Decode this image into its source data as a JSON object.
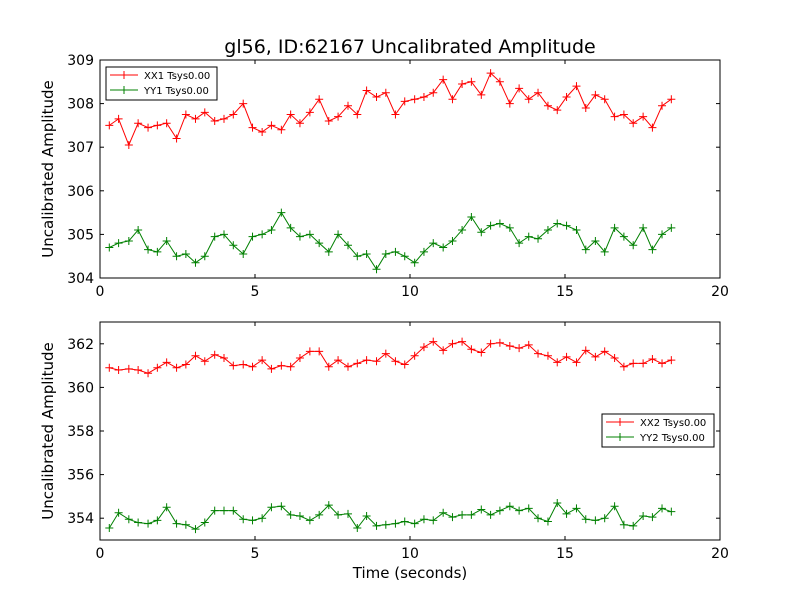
{
  "title": "gl56, ID:62167 Uncalibrated Amplitude",
  "xlabel": "Time (seconds)",
  "chart_data": [
    {
      "type": "line",
      "title": "gl56, ID:62167 Uncalibrated Amplitude",
      "xlabel": "",
      "ylabel": "Uncalibrated Amplitude",
      "xlim": [
        0,
        20
      ],
      "ylim": [
        304,
        309
      ],
      "xticks": [
        "0",
        "5",
        "10",
        "15",
        "20"
      ],
      "yticks": [
        "304",
        "305",
        "306",
        "307",
        "308",
        "309"
      ],
      "legend_position": "top-left",
      "x": [
        0.3,
        0.6,
        0.93,
        1.23,
        1.55,
        1.85,
        2.15,
        2.47,
        2.77,
        3.08,
        3.38,
        3.7,
        4.0,
        4.3,
        4.62,
        4.92,
        5.23,
        5.53,
        5.85,
        6.15,
        6.45,
        6.77,
        7.07,
        7.38,
        7.68,
        8.0,
        8.3,
        8.6,
        8.92,
        9.22,
        9.53,
        9.83,
        10.15,
        10.45,
        10.75,
        11.07,
        11.37,
        11.68,
        11.98,
        12.3,
        12.6,
        12.9,
        13.22,
        13.52,
        13.83,
        14.13,
        14.45,
        14.75,
        15.05,
        15.37,
        15.67,
        15.98,
        16.28,
        16.6,
        16.9,
        17.2,
        17.52,
        17.82,
        18.13,
        18.43
      ],
      "series": [
        {
          "name": "XX1 Tsys0.00",
          "color": "#ff0000",
          "values": [
            307.5,
            307.65,
            307.05,
            307.55,
            307.45,
            307.5,
            307.55,
            307.2,
            307.75,
            307.65,
            307.8,
            307.6,
            307.65,
            307.75,
            308.0,
            307.45,
            307.35,
            307.5,
            307.4,
            307.75,
            307.55,
            307.8,
            308.1,
            307.6,
            307.7,
            307.95,
            307.75,
            308.3,
            308.15,
            308.25,
            307.75,
            308.05,
            308.1,
            308.15,
            308.25,
            308.55,
            308.1,
            308.45,
            308.5,
            308.2,
            308.7,
            308.5,
            308.0,
            308.35,
            308.1,
            308.25,
            307.95,
            307.85,
            308.15,
            308.4,
            307.9,
            308.2,
            308.1,
            307.7,
            307.75,
            307.55,
            307.7,
            307.45,
            307.95,
            308.1
          ]
        },
        {
          "name": "YY1 Tsys0.00",
          "color": "#008000",
          "values": [
            304.7,
            304.8,
            304.85,
            305.1,
            304.65,
            304.6,
            304.85,
            304.5,
            304.55,
            304.35,
            304.5,
            304.95,
            305.0,
            304.75,
            304.55,
            304.95,
            305.0,
            305.1,
            305.5,
            305.15,
            304.95,
            305.0,
            304.8,
            304.6,
            305.0,
            304.75,
            304.5,
            304.55,
            304.2,
            304.55,
            304.6,
            304.5,
            304.35,
            304.6,
            304.8,
            304.7,
            304.85,
            305.1,
            305.4,
            305.05,
            305.2,
            305.25,
            305.15,
            304.8,
            304.95,
            304.9,
            305.1,
            305.25,
            305.2,
            305.1,
            304.65,
            304.85,
            304.6,
            305.15,
            304.95,
            304.75,
            305.15,
            304.65,
            305.0,
            305.15
          ]
        }
      ]
    },
    {
      "type": "line",
      "title": "",
      "xlabel": "Time (seconds)",
      "ylabel": "Uncalibrated Amplitude",
      "xlim": [
        0,
        20
      ],
      "ylim": [
        353,
        363
      ],
      "xticks": [
        "0",
        "5",
        "10",
        "15",
        "20"
      ],
      "yticks": [
        "354",
        "356",
        "358",
        "360",
        "362"
      ],
      "legend_position": "center-right",
      "x": [
        0.3,
        0.6,
        0.93,
        1.23,
        1.55,
        1.85,
        2.15,
        2.47,
        2.77,
        3.08,
        3.38,
        3.7,
        4.0,
        4.3,
        4.62,
        4.92,
        5.23,
        5.53,
        5.85,
        6.15,
        6.45,
        6.77,
        7.07,
        7.38,
        7.68,
        8.0,
        8.3,
        8.6,
        8.92,
        9.22,
        9.53,
        9.83,
        10.15,
        10.45,
        10.75,
        11.07,
        11.37,
        11.68,
        11.98,
        12.3,
        12.6,
        12.9,
        13.22,
        13.52,
        13.83,
        14.13,
        14.45,
        14.75,
        15.05,
        15.37,
        15.67,
        15.98,
        16.28,
        16.6,
        16.9,
        17.2,
        17.52,
        17.82,
        18.13,
        18.43
      ],
      "series": [
        {
          "name": "XX2 Tsys0.00",
          "color": "#ff0000",
          "values": [
            360.9,
            360.8,
            360.85,
            360.8,
            360.65,
            360.9,
            361.15,
            360.9,
            361.05,
            361.45,
            361.2,
            361.5,
            361.35,
            361.0,
            361.05,
            360.95,
            361.25,
            360.85,
            361.0,
            360.95,
            361.35,
            361.65,
            361.65,
            360.95,
            361.25,
            360.95,
            361.1,
            361.25,
            361.2,
            361.55,
            361.2,
            361.05,
            361.45,
            361.85,
            362.1,
            361.7,
            362.0,
            362.1,
            361.75,
            361.6,
            362.0,
            362.05,
            361.9,
            361.8,
            361.95,
            361.55,
            361.45,
            361.15,
            361.4,
            361.15,
            361.7,
            361.4,
            361.65,
            361.35,
            360.95,
            361.1,
            361.1,
            361.3,
            361.1,
            361.25
          ]
        },
        {
          "name": "YY2 Tsys0.00",
          "color": "#008000",
          "values": [
            353.55,
            354.25,
            353.95,
            353.8,
            353.75,
            353.9,
            354.5,
            353.75,
            353.7,
            353.5,
            353.8,
            354.35,
            354.35,
            354.35,
            353.95,
            353.9,
            354.0,
            354.5,
            354.55,
            354.15,
            354.1,
            353.9,
            354.15,
            354.6,
            354.15,
            354.2,
            353.55,
            354.1,
            353.65,
            353.7,
            353.75,
            353.85,
            353.75,
            353.95,
            353.9,
            354.25,
            354.05,
            354.15,
            354.15,
            354.4,
            354.15,
            354.35,
            354.55,
            354.35,
            354.45,
            354.0,
            353.85,
            354.7,
            354.2,
            354.45,
            353.95,
            353.9,
            354.0,
            354.55,
            353.7,
            353.65,
            354.1,
            354.05,
            354.45,
            354.3
          ]
        }
      ]
    }
  ]
}
